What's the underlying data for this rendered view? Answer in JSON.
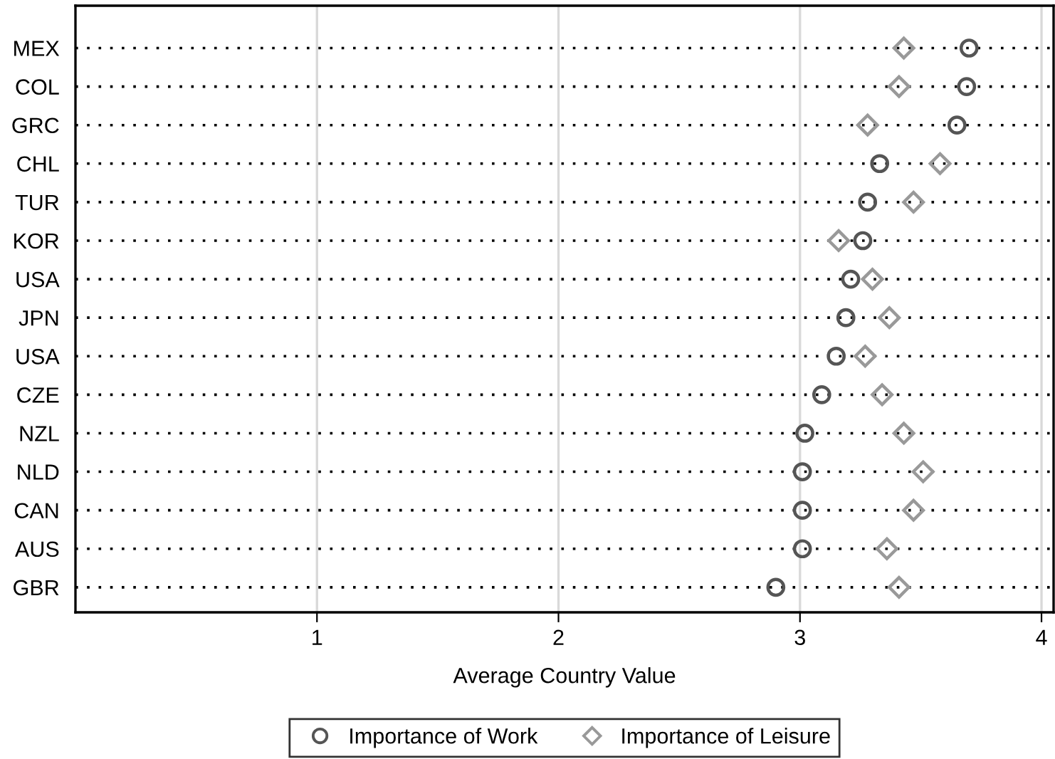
{
  "chart_data": {
    "type": "scatter",
    "xlabel": "Average Country Value",
    "categories": [
      "MEX",
      "COL",
      "GRC",
      "CHL",
      "TUR",
      "KOR",
      "USA",
      "JPN",
      "USA",
      "CZE",
      "NZL",
      "NLD",
      "CAN",
      "AUS",
      "GBR"
    ],
    "series": [
      {
        "name": "Importance of Work",
        "color": "#555555",
        "marker": "circle",
        "values": [
          3.7,
          3.69,
          3.65,
          3.33,
          3.28,
          3.26,
          3.21,
          3.19,
          3.15,
          3.09,
          3.02,
          3.01,
          3.01,
          3.01,
          2.9
        ]
      },
      {
        "name": "Importance of Leisure",
        "color": "#999999",
        "marker": "diamond",
        "values": [
          3.43,
          3.41,
          3.28,
          3.58,
          3.47,
          3.16,
          3.3,
          3.37,
          3.27,
          3.34,
          3.43,
          3.51,
          3.47,
          3.36,
          3.41
        ]
      }
    ],
    "orientation": "horizontal",
    "xlim": [
      0,
      4.05
    ],
    "xticks": [
      1,
      2,
      3,
      4
    ],
    "grid": true,
    "legend": "bottom"
  }
}
